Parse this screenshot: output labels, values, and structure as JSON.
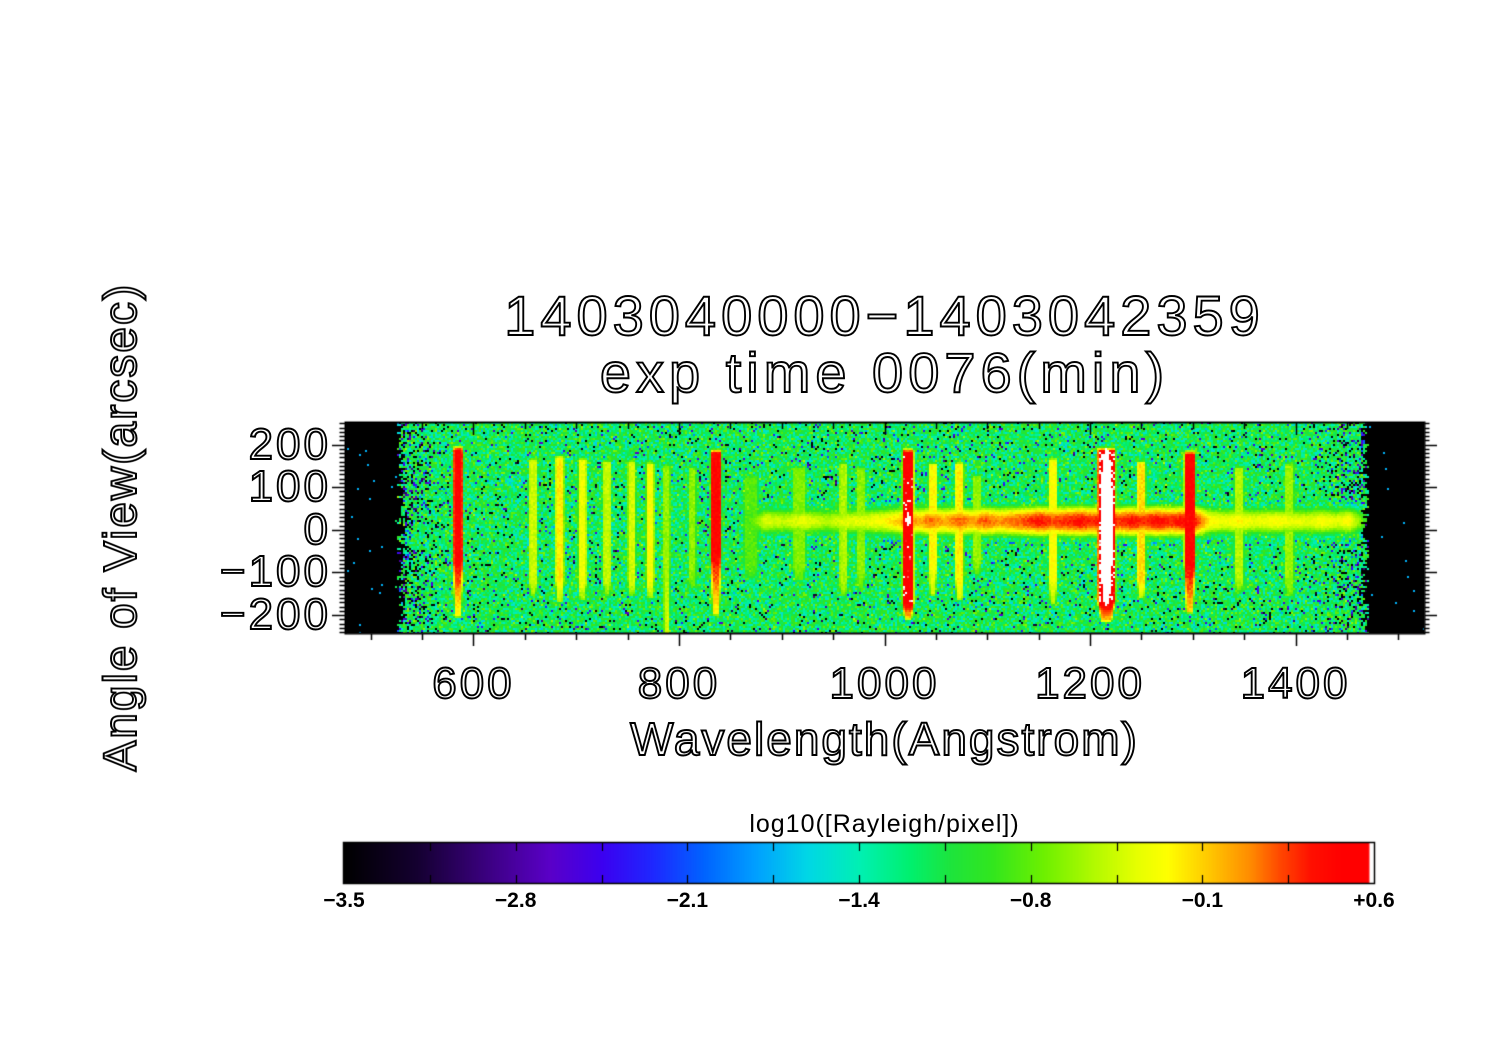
{
  "chart_data": {
    "type": "heatmap",
    "title": "1403040000−1403042359",
    "subtitle": "exp time 0076(min)",
    "xlabel": "Wavelength(Angstrom)",
    "ylabel": "Angle of View(arcsec)",
    "xlim": [
      475,
      1525
    ],
    "ylim": [
      -242,
      253
    ],
    "xticks": [
      600,
      800,
      1000,
      1200,
      1400
    ],
    "xtick_labels": [
      "600",
      "800",
      "1000",
      "1200",
      "1400"
    ],
    "x_minor_step": 50,
    "x_major_step": 200,
    "yticks": [
      200,
      100,
      0,
      -100,
      -200
    ],
    "ytick_labels": [
      "200",
      "100",
      "0",
      "−100",
      "−200"
    ],
    "y_minor_step": 10,
    "y_major_step": 100,
    "grid": false,
    "colorbar": {
      "title": "log10([Rayleigh/pixel])",
      "range": [
        -3.5,
        0.6
      ],
      "tick_values": [
        -3.5,
        -2.8,
        -2.1,
        -1.4,
        -0.8,
        -0.1,
        0.6
      ],
      "tick_labels": [
        "−3.5",
        "−2.8",
        "−2.1",
        "−1.4",
        "−0.8",
        "−0.1",
        "+0.6"
      ],
      "minor_divisions": 12
    },
    "colormap_stops": [
      [
        0.0,
        "#000000"
      ],
      [
        0.07,
        "#140030"
      ],
      [
        0.14,
        "#3c0082"
      ],
      [
        0.2,
        "#5a00c8"
      ],
      [
        0.25,
        "#3c00f0"
      ],
      [
        0.3,
        "#1e28ff"
      ],
      [
        0.35,
        "#0064ff"
      ],
      [
        0.4,
        "#00a0ff"
      ],
      [
        0.45,
        "#00d7e6"
      ],
      [
        0.5,
        "#00f0b4"
      ],
      [
        0.55,
        "#00f06e"
      ],
      [
        0.59,
        "#1ee43c"
      ],
      [
        0.63,
        "#32e61e"
      ],
      [
        0.68,
        "#6ef000"
      ],
      [
        0.73,
        "#b4fa00"
      ],
      [
        0.77,
        "#e6ff00"
      ],
      [
        0.8,
        "#ffff00"
      ],
      [
        0.84,
        "#ffc800"
      ],
      [
        0.88,
        "#ff8c00"
      ],
      [
        0.91,
        "#ff4600"
      ],
      [
        0.94,
        "#ff0f00"
      ],
      [
        0.97,
        "#ff0000"
      ],
      [
        0.995,
        "#ff0000"
      ],
      [
        0.997,
        "#ffffff"
      ],
      [
        1.0,
        "#ffffff"
      ]
    ],
    "image_model": {
      "data_wavelength_range": [
        529,
        1468
      ],
      "background_level": -1.15,
      "noise_sigma": 0.33,
      "black_speckle_fraction": 0.055,
      "edge_speckle_boost": 0.28,
      "emission_lines_fields": [
        "wavelength_A",
        "peak_log10",
        "core_halfwidth_A",
        "y_top_arcsec",
        "y_bottom_arcsec",
        "tail_end_arcsec",
        "tail_peak_log10",
        "halo_sigma_A"
      ],
      "emission_lines": [
        [
          585,
          0.46,
          3.2,
          185,
          -75,
          -200,
          -0.28,
          2.3
        ],
        [
          658,
          -0.42,
          2.6,
          160,
          -125,
          -150,
          -0.6,
          2.3
        ],
        [
          684,
          -0.18,
          2.8,
          165,
          -120,
          -165,
          -0.5,
          2.3
        ],
        [
          706,
          -0.3,
          2.7,
          160,
          -125,
          -160,
          -0.55,
          2.3
        ],
        [
          730,
          -0.45,
          2.6,
          155,
          -120,
          -150,
          -0.6,
          2.3
        ],
        [
          754,
          -0.4,
          2.6,
          155,
          -120,
          -150,
          -0.6,
          2.3
        ],
        [
          772,
          -0.26,
          2.6,
          150,
          -115,
          -155,
          -0.5,
          2.3
        ],
        [
          788,
          -0.6,
          2.4,
          145,
          -20,
          -245,
          -0.4,
          2.3
        ],
        [
          813,
          -0.62,
          2.4,
          140,
          -100,
          -130,
          -0.75,
          2.3
        ],
        [
          836,
          0.44,
          3.6,
          178,
          -62,
          -195,
          -0.25,
          2.3
        ],
        [
          870,
          -0.8,
          5.0,
          120,
          -80,
          -110,
          -0.9,
          4.0
        ],
        [
          917,
          -0.65,
          4.5,
          140,
          -85,
          -115,
          -0.8,
          3.5
        ],
        [
          960,
          -0.52,
          2.8,
          150,
          -115,
          -150,
          -0.65,
          2.3
        ],
        [
          977,
          -0.62,
          2.8,
          140,
          -100,
          -135,
          -0.75,
          2.3
        ],
        [
          1023,
          0.5,
          4.0,
          180,
          -172,
          -205,
          -0.05,
          2.3
        ],
        [
          1047,
          -0.22,
          2.8,
          148,
          -75,
          -150,
          -0.45,
          2.3
        ],
        [
          1073,
          -0.18,
          2.8,
          150,
          -115,
          -160,
          -0.4,
          2.3
        ],
        [
          1090,
          -0.6,
          3.0,
          120,
          -70,
          -100,
          -0.7,
          2.5
        ],
        [
          1164,
          -0.25,
          2.8,
          160,
          -110,
          -170,
          -0.5,
          2.3
        ],
        [
          1216,
          0.56,
          7.0,
          182,
          -165,
          -210,
          0.0,
          2.6
        ],
        [
          1250,
          -0.12,
          2.8,
          152,
          -112,
          -155,
          -0.35,
          2.3
        ],
        [
          1297,
          0.46,
          3.8,
          175,
          -80,
          -190,
          -0.1,
          2.3
        ],
        [
          1345,
          -0.5,
          3.2,
          140,
          -115,
          -140,
          -0.65,
          2.5
        ],
        [
          1394,
          -0.58,
          3.2,
          148,
          -118,
          -150,
          -0.7,
          2.5
        ]
      ],
      "disk_band": {
        "center_arcsec": 20,
        "halfwidth_arcsec": 26,
        "falloff": 0.6,
        "profile_fields": [
          "wavelength_A",
          "peak_log10"
        ],
        "profile": [
          [
            868,
            -0.9
          ],
          [
            884,
            -0.35
          ],
          [
            902,
            -0.45
          ],
          [
            922,
            -0.3
          ],
          [
            942,
            -0.5
          ],
          [
            962,
            -0.35
          ],
          [
            982,
            -0.32
          ],
          [
            1000,
            -0.22
          ],
          [
            1012,
            -0.08
          ],
          [
            1023,
            0.15
          ],
          [
            1034,
            0.0
          ],
          [
            1044,
            0.18
          ],
          [
            1058,
            0.02
          ],
          [
            1073,
            0.2
          ],
          [
            1086,
            0.05
          ],
          [
            1098,
            0.22
          ],
          [
            1112,
            0.08
          ],
          [
            1126,
            0.18
          ],
          [
            1140,
            0.28
          ],
          [
            1152,
            0.38
          ],
          [
            1164,
            0.25
          ],
          [
            1178,
            0.32
          ],
          [
            1190,
            0.4
          ],
          [
            1202,
            0.3
          ],
          [
            1216,
            0.5
          ],
          [
            1228,
            0.26
          ],
          [
            1240,
            0.4
          ],
          [
            1252,
            0.3
          ],
          [
            1264,
            0.42
          ],
          [
            1278,
            0.32
          ],
          [
            1292,
            0.42
          ],
          [
            1304,
            0.32
          ],
          [
            1316,
            -0.18
          ],
          [
            1330,
            -0.3
          ],
          [
            1345,
            -0.2
          ],
          [
            1360,
            -0.32
          ],
          [
            1382,
            -0.22
          ],
          [
            1396,
            -0.3
          ],
          [
            1412,
            -0.35
          ],
          [
            1426,
            -0.22
          ],
          [
            1440,
            -0.35
          ],
          [
            1452,
            -0.2
          ],
          [
            1462,
            -0.6
          ],
          [
            1468,
            -0.9
          ]
        ]
      },
      "saturated_cores_fields": [
        "wavelength_A",
        "max_halfwidth_A",
        "y_center_arcsec",
        "y_halfheight_arcsec",
        "value_log10"
      ],
      "saturated_cores": [
        [
          1216,
          6.2,
          5,
          186,
          0.72
        ],
        [
          1023,
          2.2,
          24,
          17,
          0.7
        ]
      ]
    }
  }
}
